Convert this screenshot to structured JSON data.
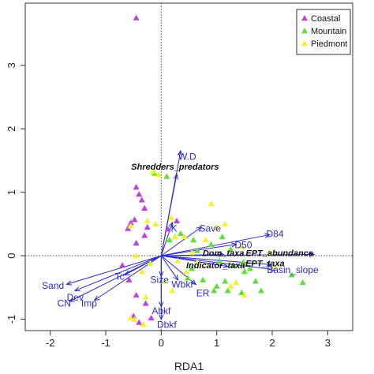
{
  "chart_data": {
    "type": "scatter",
    "title": "",
    "xlabel": "RDA1",
    "ylabel": "",
    "xlim": [
      -2.45,
      3.45
    ],
    "ylim": [
      -1.18,
      3.98
    ],
    "xticks": [
      -2,
      -1,
      0,
      1,
      2,
      3
    ],
    "yticks": [
      -1,
      0,
      1,
      2,
      3
    ],
    "xtick_labels": [
      "-2",
      "-1",
      "0",
      "1",
      "2",
      "3"
    ],
    "ytick_labels": [
      "-1",
      "0",
      "1",
      "2",
      "3"
    ],
    "reference_lines": {
      "x": 0,
      "y": 0,
      "style": "dotted"
    },
    "legend": {
      "placement": "top-right",
      "entries": [
        {
          "label": "Coastal",
          "color": "#bf3fe0"
        },
        {
          "label": "Mountain",
          "color": "#5ee038"
        },
        {
          "label": "Piedmont",
          "color": "#f2f230"
        }
      ]
    },
    "series": [
      {
        "name": "Coastal",
        "color": "#bf3fe0",
        "marker": "triangle",
        "points": [
          [
            -0.45,
            3.75
          ],
          [
            -0.45,
            1.08
          ],
          [
            -0.4,
            0.97
          ],
          [
            -0.35,
            0.88
          ],
          [
            -0.3,
            0.75
          ],
          [
            -0.48,
            0.57
          ],
          [
            -0.55,
            0.52
          ],
          [
            -0.6,
            0.43
          ],
          [
            -0.25,
            0.45
          ],
          [
            -0.3,
            0.32
          ],
          [
            -0.45,
            0.2
          ],
          [
            -0.7,
            -0.15
          ],
          [
            -0.58,
            -0.38
          ],
          [
            -0.45,
            -0.62
          ],
          [
            -0.28,
            -0.75
          ],
          [
            -0.18,
            -0.98
          ],
          [
            -0.5,
            -0.95
          ],
          [
            -0.4,
            -1.05
          ],
          [
            0.12,
            0.42
          ],
          [
            0.28,
            0.55
          ]
        ]
      },
      {
        "name": "Mountain",
        "color": "#5ee038",
        "marker": "triangle",
        "points": [
          [
            -0.12,
            1.3
          ],
          [
            0.1,
            1.25
          ],
          [
            0.35,
            0.35
          ],
          [
            0.58,
            0.25
          ],
          [
            0.65,
            0.08
          ],
          [
            0.9,
            0.18
          ],
          [
            1.1,
            0.3
          ],
          [
            1.25,
            0.1
          ],
          [
            1.05,
            -0.08
          ],
          [
            1.3,
            -0.15
          ],
          [
            1.48,
            -0.1
          ],
          [
            1.6,
            -0.2
          ],
          [
            1.15,
            -0.4
          ],
          [
            0.95,
            -0.55
          ],
          [
            1.0,
            -0.48
          ],
          [
            1.2,
            -0.55
          ],
          [
            1.45,
            -0.58
          ],
          [
            1.7,
            -0.4
          ],
          [
            2.35,
            -0.3
          ],
          [
            2.55,
            -0.42
          ],
          [
            1.8,
            -0.55
          ],
          [
            0.55,
            -0.2
          ],
          [
            0.48,
            -0.35
          ],
          [
            0.75,
            -0.38
          ],
          [
            1.5,
            -0.25
          ],
          [
            0.15,
            0.25
          ],
          [
            0.25,
            0.3
          ]
        ]
      },
      {
        "name": "Piedmont",
        "color": "#f2f230",
        "marker": "triangle",
        "points": [
          [
            -0.15,
            1.33
          ],
          [
            -0.05,
            1.28
          ],
          [
            -0.55,
            0.47
          ],
          [
            -0.25,
            0.55
          ],
          [
            -0.1,
            0.5
          ],
          [
            0.18,
            0.6
          ],
          [
            0.25,
            0.3
          ],
          [
            0.42,
            0.3
          ],
          [
            0.9,
            0.82
          ],
          [
            1.0,
            0.45
          ],
          [
            1.15,
            0.5
          ],
          [
            0.8,
            0.25
          ],
          [
            0.55,
            0.05
          ],
          [
            0.65,
            -0.1
          ],
          [
            0.45,
            -0.25
          ],
          [
            0.3,
            -0.08
          ],
          [
            1.45,
            0.15
          ],
          [
            1.95,
            0.05
          ],
          [
            2.05,
            -0.18
          ],
          [
            1.35,
            -0.42
          ],
          [
            1.25,
            -0.48
          ],
          [
            1.5,
            -0.62
          ],
          [
            0.2,
            -0.55
          ],
          [
            0.05,
            -0.4
          ],
          [
            -0.2,
            -0.12
          ],
          [
            -0.35,
            -0.25
          ],
          [
            -0.45,
            0.0
          ],
          [
            -0.28,
            -0.65
          ],
          [
            -0.55,
            -0.98
          ],
          [
            -0.48,
            -1.0
          ],
          [
            -0.32,
            -1.08
          ]
        ]
      }
    ],
    "vectors": [
      {
        "label": "W.D",
        "end": [
          0.35,
          1.65
        ],
        "label_at": [
          0.47,
          1.55
        ],
        "style": "normal"
      },
      {
        "label": "Shredders_predators",
        "end": [
          0.28,
          1.28
        ],
        "label_at": [
          0.25,
          1.39
        ],
        "style": "bold-italic"
      },
      {
        "label": "K",
        "end": [
          0.2,
          0.52
        ],
        "label_at": [
          0.23,
          0.42
        ],
        "style": "normal"
      },
      {
        "label": "Save",
        "end": [
          0.72,
          0.45
        ],
        "label_at": [
          0.88,
          0.42
        ],
        "style": "normal"
      },
      {
        "label": "D84",
        "end": [
          1.95,
          0.33
        ],
        "label_at": [
          2.05,
          0.33
        ],
        "style": "normal"
      },
      {
        "label": "D50",
        "end": [
          1.35,
          0.18
        ],
        "label_at": [
          1.48,
          0.16
        ],
        "style": "normal"
      },
      {
        "label": "Dom_taxa",
        "end": [
          1.12,
          0.02
        ],
        "label_at": [
          1.12,
          0.03
        ],
        "style": "bold-italic"
      },
      {
        "label": "EPT_abundance",
        "end": [
          2.75,
          0.02
        ],
        "label_at": [
          2.13,
          0.03
        ],
        "style": "bold-italic"
      },
      {
        "label": "Basin_slope",
        "end": [
          2.05,
          -0.22
        ],
        "label_at": [
          2.37,
          -0.23
        ],
        "style": "normal"
      },
      {
        "label": "EPT_taxa",
        "end": [
          1.98,
          -0.14
        ],
        "label_at": [
          1.87,
          -0.13
        ],
        "style": "bold-italic"
      },
      {
        "label": "Indicator_taxa",
        "end": [
          1.2,
          -0.17
        ],
        "label_at": [
          0.98,
          -0.16
        ],
        "style": "bold-italic"
      },
      {
        "label": "ER",
        "end": [
          0.62,
          -0.45
        ],
        "label_at": [
          0.75,
          -0.6
        ],
        "style": "normal"
      },
      {
        "label": "Wbkf",
        "end": [
          0.3,
          -0.38
        ],
        "label_at": [
          0.38,
          -0.46
        ],
        "style": "normal"
      },
      {
        "label": "Size",
        "end": [
          0.0,
          -0.32
        ],
        "label_at": [
          -0.03,
          -0.39
        ],
        "style": "normal"
      },
      {
        "label": "Abkf",
        "end": [
          0.0,
          -0.8
        ],
        "label_at": [
          0.0,
          -0.88
        ],
        "style": "normal"
      },
      {
        "label": "Dbkf",
        "end": [
          0.0,
          -1.0
        ],
        "label_at": [
          0.1,
          -1.1
        ],
        "style": "normal"
      },
      {
        "label": "Tc",
        "end": [
          -0.65,
          -0.3
        ],
        "label_at": [
          -0.75,
          -0.34
        ],
        "style": "normal"
      },
      {
        "label": "Sand",
        "end": [
          -1.7,
          -0.45
        ],
        "label_at": [
          -1.95,
          -0.48
        ],
        "style": "normal"
      },
      {
        "label": "Dev",
        "end": [
          -1.55,
          -0.55
        ],
        "label_at": [
          -1.55,
          -0.67
        ],
        "style": "normal"
      },
      {
        "label": "CN",
        "end": [
          -1.65,
          -0.72
        ],
        "label_at": [
          -1.75,
          -0.76
        ],
        "style": "normal"
      },
      {
        "label": "Imp",
        "end": [
          -1.2,
          -0.7
        ],
        "label_at": [
          -1.3,
          -0.76
        ],
        "style": "normal"
      }
    ]
  }
}
